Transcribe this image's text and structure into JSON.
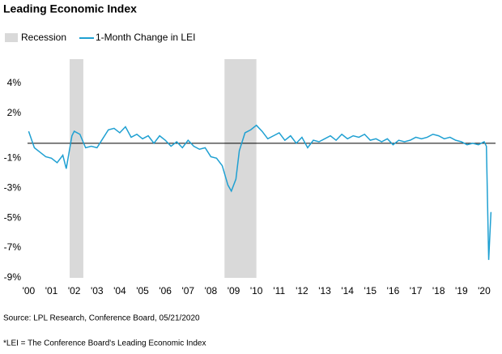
{
  "chart_data": {
    "type": "line",
    "title": "Leading Economic Index",
    "source": "Source: LPL Research, Conference Board, 05/21/2020",
    "footnote": "*LEI = The Conference Board's Leading Economic Index",
    "recession": {
      "name": "Recession",
      "color": "#d9d9d9",
      "spans": [
        [
          2001.8,
          2002.4
        ],
        [
          2008.6,
          2010.0
        ]
      ]
    },
    "x": [
      2000.0,
      2000.25,
      2000.5,
      2000.75,
      2001.0,
      2001.25,
      2001.5,
      2001.65,
      2001.9,
      2002.0,
      2002.25,
      2002.5,
      2002.75,
      2003.0,
      2003.25,
      2003.5,
      2003.75,
      2004.0,
      2004.25,
      2004.5,
      2004.75,
      2005.0,
      2005.25,
      2005.5,
      2005.75,
      2006.0,
      2006.25,
      2006.5,
      2006.75,
      2007.0,
      2007.25,
      2007.5,
      2007.75,
      2008.0,
      2008.25,
      2008.5,
      2008.75,
      2008.9,
      2009.1,
      2009.25,
      2009.5,
      2009.75,
      2010.0,
      2010.25,
      2010.5,
      2010.75,
      2011.0,
      2011.25,
      2011.5,
      2011.75,
      2012.0,
      2012.25,
      2012.5,
      2012.75,
      2013.0,
      2013.25,
      2013.5,
      2013.75,
      2014.0,
      2014.25,
      2014.5,
      2014.75,
      2015.0,
      2015.25,
      2015.5,
      2015.75,
      2016.0,
      2016.25,
      2016.5,
      2016.75,
      2017.0,
      2017.25,
      2017.5,
      2017.75,
      2018.0,
      2018.25,
      2018.5,
      2018.75,
      2019.0,
      2019.25,
      2019.5,
      2019.75,
      2020.0,
      2020.1,
      2020.2,
      2020.3
    ],
    "series": [
      {
        "name": "1-Month Change in LEI",
        "color": "#1fa0d2",
        "values": [
          0.8,
          -0.3,
          -0.6,
          -0.9,
          -1.0,
          -1.3,
          -0.8,
          -1.7,
          0.5,
          0.8,
          0.6,
          -0.3,
          -0.2,
          -0.3,
          0.3,
          0.9,
          1.0,
          0.7,
          1.1,
          0.4,
          0.6,
          0.3,
          0.5,
          0.0,
          0.5,
          0.2,
          -0.2,
          0.1,
          -0.3,
          0.2,
          -0.2,
          -0.4,
          -0.3,
          -0.9,
          -1.0,
          -1.5,
          -2.8,
          -3.2,
          -2.4,
          -0.5,
          0.7,
          0.9,
          1.2,
          0.8,
          0.3,
          0.5,
          0.7,
          0.2,
          0.5,
          0.0,
          0.4,
          -0.3,
          0.2,
          0.1,
          0.3,
          0.5,
          0.2,
          0.6,
          0.3,
          0.5,
          0.4,
          0.6,
          0.2,
          0.3,
          0.1,
          0.3,
          -0.1,
          0.2,
          0.1,
          0.2,
          0.4,
          0.3,
          0.4,
          0.6,
          0.5,
          0.3,
          0.4,
          0.2,
          0.1,
          -0.1,
          0.0,
          -0.1,
          0.1,
          -0.2,
          -7.8,
          -4.6
        ]
      }
    ],
    "xlim": [
      1999.95,
      2020.5
    ],
    "xticks": [
      {
        "value": 2000,
        "label": "'00"
      },
      {
        "value": 2001,
        "label": "'01"
      },
      {
        "value": 2002,
        "label": "'02"
      },
      {
        "value": 2003,
        "label": "'03"
      },
      {
        "value": 2004,
        "label": "'04"
      },
      {
        "value": 2005,
        "label": "'05"
      },
      {
        "value": 2006,
        "label": "'06"
      },
      {
        "value": 2007,
        "label": "'07"
      },
      {
        "value": 2008,
        "label": "'08"
      },
      {
        "value": 2009,
        "label": "'09"
      },
      {
        "value": 2010,
        "label": "'10"
      },
      {
        "value": 2011,
        "label": "'11"
      },
      {
        "value": 2012,
        "label": "'12"
      },
      {
        "value": 2013,
        "label": "'13"
      },
      {
        "value": 2014,
        "label": "'14"
      },
      {
        "value": 2015,
        "label": "'15"
      },
      {
        "value": 2016,
        "label": "'16"
      },
      {
        "value": 2017,
        "label": "'17"
      },
      {
        "value": 2018,
        "label": "'18"
      },
      {
        "value": 2019,
        "label": "'19"
      },
      {
        "value": 2020,
        "label": "'20"
      }
    ],
    "ylim": [
      -9,
      4
    ],
    "yticks": [
      {
        "value": 4,
        "label": "4%"
      },
      {
        "value": 2,
        "label": "2%"
      },
      {
        "value": -1,
        "label": "-1%"
      },
      {
        "value": -3,
        "label": "-3%"
      },
      {
        "value": -5,
        "label": "-5%"
      },
      {
        "value": -7,
        "label": "-7%"
      },
      {
        "value": -9,
        "label": "-9%"
      }
    ]
  }
}
